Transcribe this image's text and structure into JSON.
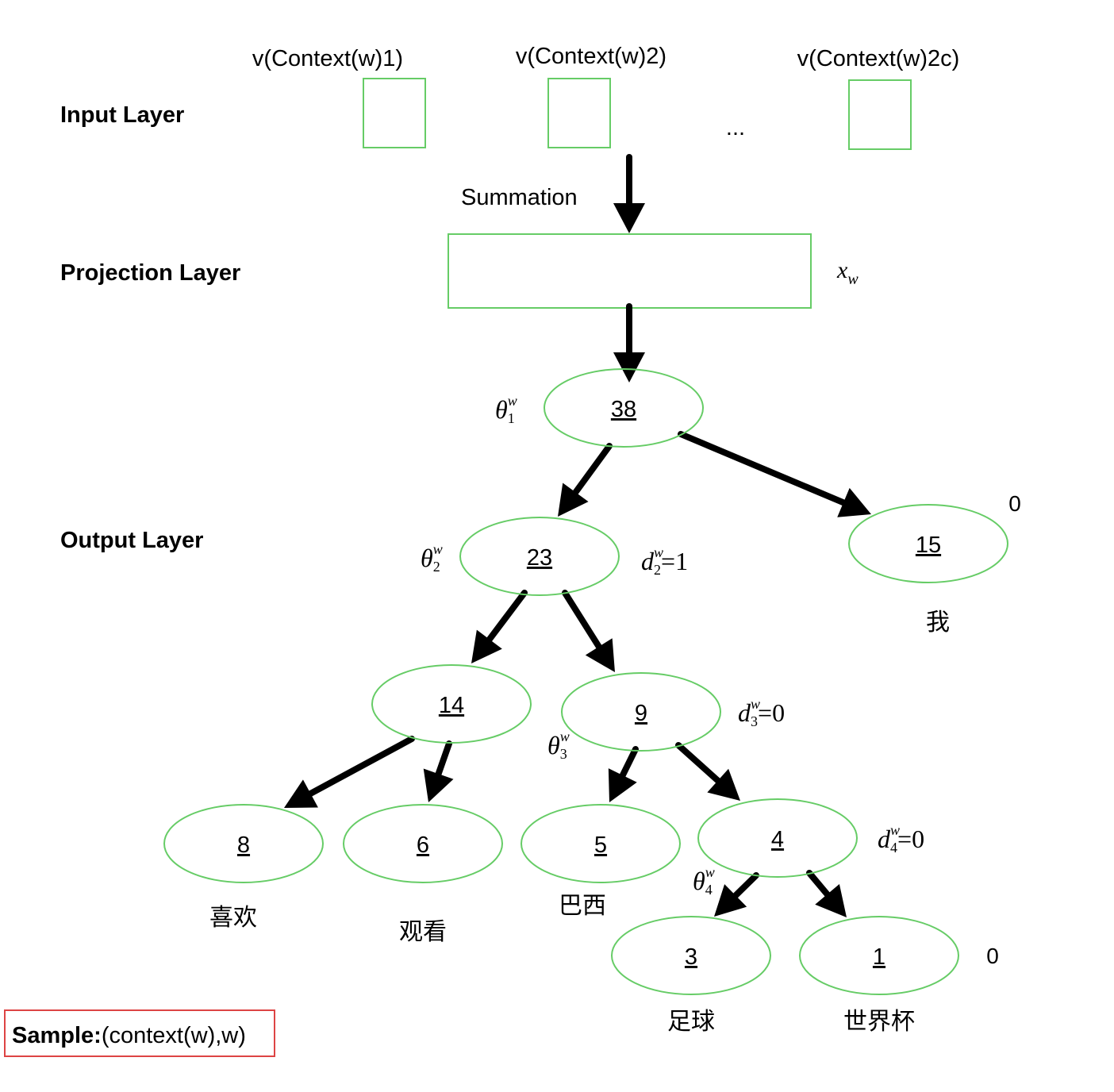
{
  "layers": {
    "input": "Input Layer",
    "projection": "Projection Layer",
    "output": "Output Layer"
  },
  "context": {
    "labels": [
      "v(Context(w)1)",
      "v(Context(w)2)",
      "v(Context(w)2c)"
    ],
    "ellipsis": "..."
  },
  "summation": "Summation",
  "projection_symbol": {
    "base": "x",
    "sub": "w"
  },
  "nodes": {
    "root": "38",
    "n23": "23",
    "n15": "15",
    "n14": "14",
    "n9": "9",
    "n8": "8",
    "n6": "6",
    "n5": "5",
    "n4": "4",
    "n3": "3",
    "n1": "1"
  },
  "leaf_words": {
    "n15": "我",
    "n8": "喜欢",
    "n6": "观看",
    "n5": "巴西",
    "n3": "足球",
    "n1": "世界杯"
  },
  "code_bits": {
    "n15": "0",
    "n1": "0"
  },
  "thetas": [
    {
      "base": "θ",
      "sup": "w",
      "sub": "1"
    },
    {
      "base": "θ",
      "sup": "w",
      "sub": "2"
    },
    {
      "base": "θ",
      "sup": "w",
      "sub": "3"
    },
    {
      "base": "θ",
      "sup": "w",
      "sub": "4"
    }
  ],
  "codes": [
    {
      "base": "d",
      "sup": "w",
      "sub": "2",
      "value": "=1"
    },
    {
      "base": "d",
      "sup": "w",
      "sub": "3",
      "value": "=0"
    },
    {
      "base": "d",
      "sup": "w",
      "sub": "4",
      "value": "=0"
    }
  ],
  "sample": {
    "bold": "Sample:",
    "rest": "(context(w),w)"
  },
  "colors": {
    "node_stroke": "#66cc66",
    "sample_border": "#dd4444",
    "arrow": "#000000"
  }
}
